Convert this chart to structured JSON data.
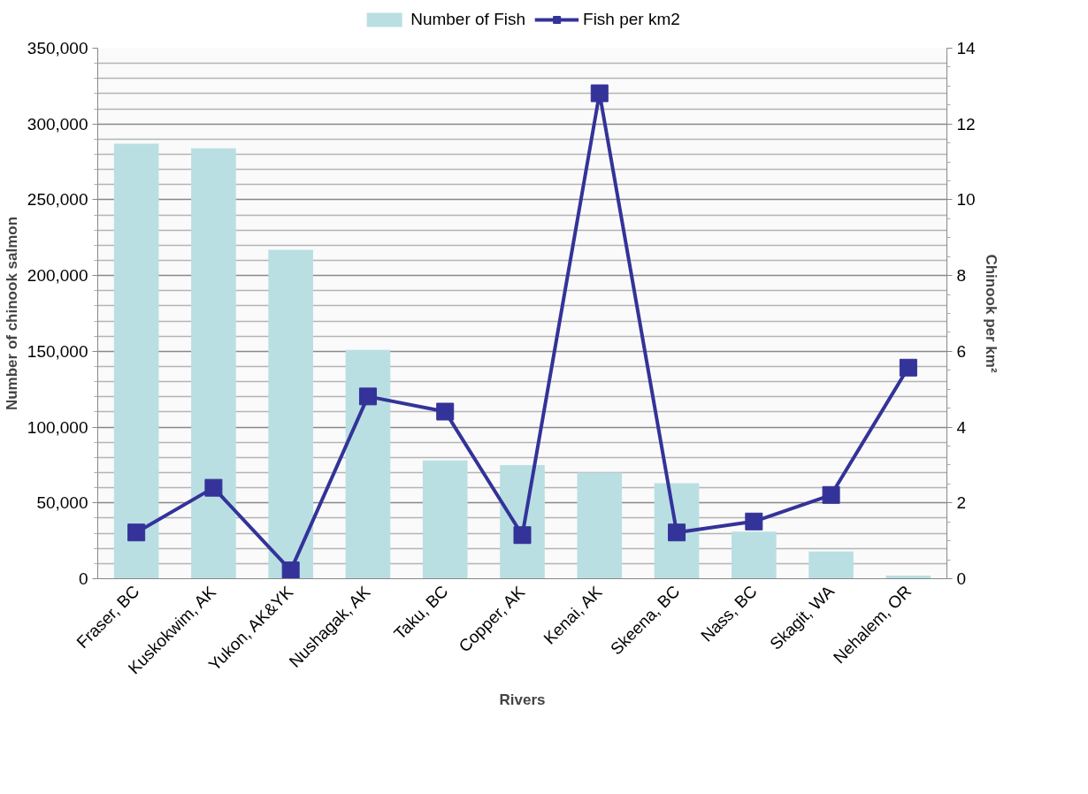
{
  "chart_data": {
    "type": "bar",
    "xlabel": "Rivers",
    "ylabel": "Number of chinook salmon",
    "y2label": "Chinook per km²",
    "categories": [
      "Fraser, BC",
      "Kuskokwim, AK",
      "Yukon, AK&YK",
      "Nushagak, AK",
      "Taku, BC",
      "Copper, AK",
      "Kenai, AK",
      "Skeena, BC",
      "Nass, BC",
      "Skagit, WA",
      "Nehalem, OR"
    ],
    "series": [
      {
        "name": "Number of Fish",
        "color": "#b9dfe3",
        "values": [
          287000,
          284000,
          217000,
          151000,
          78000,
          75000,
          70000,
          63000,
          31000,
          18000,
          2000
        ]
      },
      {
        "name": "Fish per km2",
        "type": "line",
        "axis": "y2",
        "color": "#333399",
        "marker": "square",
        "line_style": "solid",
        "values": [
          1.22,
          2.4,
          0.22,
          4.81,
          4.41,
          1.15,
          12.81,
          1.22,
          1.51,
          2.21,
          5.57
        ]
      }
    ],
    "ylim": [
      0,
      350000
    ],
    "yticks": [
      {
        "value": 0,
        "label": "0"
      },
      {
        "value": 50000,
        "label": "50,000"
      },
      {
        "value": 100000,
        "label": "100,000"
      },
      {
        "value": 150000,
        "label": "150,000"
      },
      {
        "value": 200000,
        "label": "200,000"
      },
      {
        "value": 250000,
        "label": "250,000"
      },
      {
        "value": 300000,
        "label": "300,000"
      },
      {
        "value": 350000,
        "label": "350,000"
      }
    ],
    "y2lim": [
      0,
      14
    ],
    "y2ticks": [
      0,
      2,
      4,
      6,
      8,
      10,
      12,
      14
    ],
    "grid": "y",
    "legend": "top"
  }
}
